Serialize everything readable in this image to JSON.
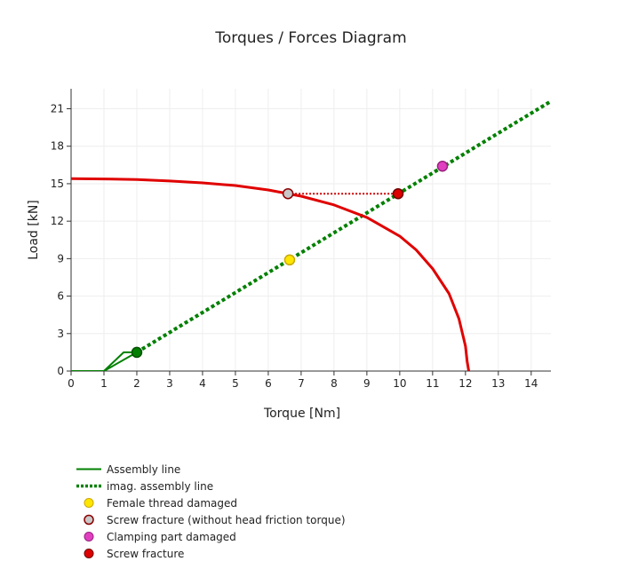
{
  "chart_data": {
    "type": "line",
    "title": "Torques / Forces Diagram",
    "xlabel": "Torque [Nm]",
    "ylabel": "Load [kN]",
    "xlim": [
      0,
      14.6
    ],
    "ylim": [
      0,
      22.6
    ],
    "xticks": [
      0,
      1,
      2,
      3,
      4,
      5,
      6,
      7,
      8,
      9,
      10,
      11,
      12,
      13,
      14
    ],
    "yticks": [
      0,
      3,
      6,
      9,
      12,
      15,
      18,
      21
    ],
    "grid": true,
    "legend_position": "bottom-left",
    "series": [
      {
        "name": "Assembly line",
        "type": "line",
        "color": "#008000",
        "style": "solid",
        "x": [
          0,
          1.0,
          1.6,
          2.0,
          1.0
        ],
        "y": [
          0,
          0,
          1.5,
          1.5,
          0
        ]
      },
      {
        "name": "imag. assembly line",
        "type": "line",
        "color": "#008000",
        "style": "dotted",
        "x": [
          2.0,
          14.6
        ],
        "y": [
          1.5,
          21.6
        ]
      },
      {
        "name": "",
        "type": "line",
        "color": "#e00000",
        "style": "solid",
        "x": [
          0,
          1,
          2,
          3,
          4,
          5,
          6,
          7,
          8,
          9,
          10,
          10.5,
          11,
          11.5,
          11.8,
          12.0,
          12.05,
          12.1
        ],
        "y": [
          15.4,
          15.38,
          15.33,
          15.22,
          15.07,
          14.85,
          14.5,
          14.0,
          13.3,
          12.3,
          10.8,
          9.7,
          8.2,
          6.2,
          4.2,
          2.0,
          0.8,
          0
        ]
      },
      {
        "name": "",
        "type": "line",
        "color": "#cc0000",
        "style": "dotted",
        "x": [
          6.6,
          9.95
        ],
        "y": [
          14.2,
          14.2
        ]
      },
      {
        "name": "Female thread damaged",
        "type": "marker",
        "color": "#ffe600",
        "x": [
          6.65
        ],
        "y": [
          8.9
        ]
      },
      {
        "name": "Screw fracture (without head friction torque)",
        "type": "marker",
        "color": "#c8c8c8",
        "x": [
          6.6
        ],
        "y": [
          14.2
        ]
      },
      {
        "name": "Clamping part damaged",
        "type": "marker",
        "color": "#e040c0",
        "x": [
          11.3
        ],
        "y": [
          16.4
        ]
      },
      {
        "name": "Screw fracture",
        "type": "marker",
        "color": "#dd0000",
        "x": [
          9.95
        ],
        "y": [
          14.2
        ]
      },
      {
        "name": "",
        "type": "marker",
        "color": "#008000",
        "x": [
          2.0
        ],
        "y": [
          1.5
        ]
      }
    ]
  }
}
